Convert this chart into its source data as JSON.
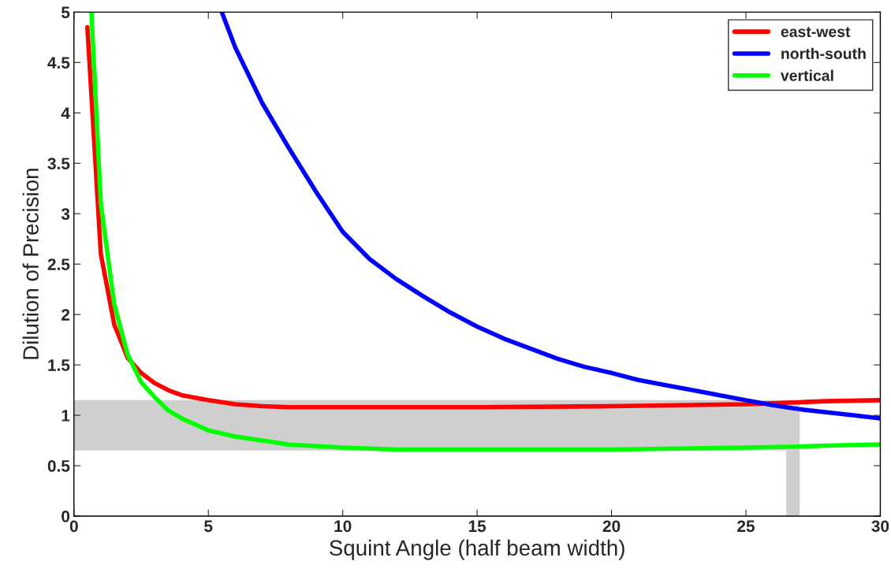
{
  "chart_data": {
    "type": "line",
    "xlabel": "Squint Angle (half beam width)",
    "ylabel": "Dilution of Precision",
    "xlim": [
      0,
      30
    ],
    "xticks": [
      0,
      5,
      10,
      15,
      20,
      25,
      30
    ],
    "ylim": [
      0,
      5
    ],
    "yticks": [
      0,
      0.5,
      1,
      1.5,
      2,
      2.5,
      3,
      3.5,
      4,
      4.5,
      5
    ],
    "grid": false,
    "legend": "top right",
    "line_style": "solid",
    "marker": "none",
    "bands": [
      {
        "axis": "y",
        "from": 0.65,
        "to": 1.15,
        "color": "#a0a0a0"
      },
      {
        "axis": "x",
        "from": 26.5,
        "to": 27,
        "color": "#a0a0a0"
      }
    ],
    "series": [
      {
        "name": "east-west",
        "color": "#ff0000",
        "x": [
          0.5,
          1,
          1.5,
          2,
          2.5,
          3,
          3.5,
          4,
          5,
          6,
          7,
          8,
          10,
          15,
          20,
          25,
          27,
          28,
          30
        ],
        "values": [
          4.85,
          2.6,
          1.9,
          1.57,
          1.42,
          1.32,
          1.25,
          1.2,
          1.15,
          1.11,
          1.09,
          1.08,
          1.08,
          1.08,
          1.09,
          1.11,
          1.13,
          1.14,
          1.15
        ]
      },
      {
        "name": "north-south",
        "color": "#0000ff",
        "x": [
          5.5,
          6,
          7,
          8,
          9,
          10,
          11,
          12,
          13,
          14,
          15,
          16,
          17,
          18,
          19,
          20,
          21,
          22,
          23,
          24,
          25,
          26,
          27,
          28,
          29,
          30
        ],
        "values": [
          5.0,
          4.65,
          4.1,
          3.65,
          3.22,
          2.82,
          2.55,
          2.35,
          2.18,
          2.02,
          1.88,
          1.76,
          1.66,
          1.56,
          1.48,
          1.42,
          1.35,
          1.3,
          1.25,
          1.2,
          1.15,
          1.1,
          1.06,
          1.03,
          1.0,
          0.97
        ]
      },
      {
        "name": "vertical",
        "color": "#00ff00",
        "x": [
          0.65,
          1,
          1.5,
          2,
          2.5,
          3,
          3.5,
          4,
          5,
          6,
          7,
          8,
          10,
          12,
          15,
          20,
          25,
          27,
          28,
          30
        ],
        "values": [
          5.0,
          3.1,
          2.1,
          1.6,
          1.33,
          1.18,
          1.05,
          0.97,
          0.85,
          0.79,
          0.75,
          0.71,
          0.68,
          0.66,
          0.66,
          0.66,
          0.68,
          0.69,
          0.7,
          0.71
        ]
      }
    ]
  }
}
